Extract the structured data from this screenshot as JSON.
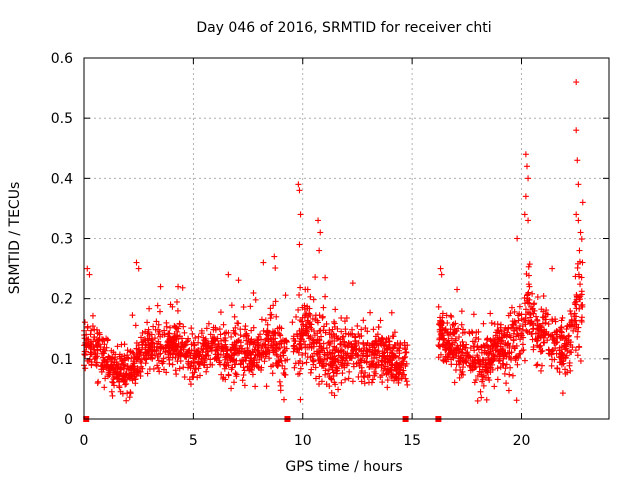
{
  "chart_data": {
    "type": "scatter",
    "title": "Day 046 of 2016, SRMTID for receiver chti",
    "xlabel": "GPS time / hours",
    "ylabel": "SRMTID / TECUs",
    "xlim": [
      0,
      24
    ],
    "ylim": [
      0,
      0.6
    ],
    "x_ticks": [
      0,
      5,
      10,
      15,
      20
    ],
    "x_tick_labels": [
      "0",
      "5",
      "10",
      "15",
      "20"
    ],
    "y_ticks": [
      0,
      0.1,
      0.2,
      0.3,
      0.4,
      0.5,
      0.6
    ],
    "y_tick_labels": [
      "0",
      "0.1",
      "0.2",
      "0.3",
      "0.4",
      "0.5",
      "0.6"
    ],
    "grid": true,
    "marker": "plus",
    "color": "#ff0000",
    "point_density_per_hour": 110,
    "gaps_hours": [
      [
        9.3,
        9.5
      ],
      [
        14.8,
        16.2
      ]
    ],
    "series": [
      {
        "name": "SRMTID",
        "trend": {
          "x": [
            0.0,
            0.5,
            1.0,
            1.5,
            2.0,
            2.5,
            3.0,
            3.5,
            4.0,
            4.5,
            5.0,
            5.5,
            6.0,
            6.5,
            7.0,
            7.5,
            8.0,
            8.5,
            9.0,
            9.3,
            9.5,
            10.0,
            10.5,
            11.0,
            11.5,
            12.0,
            12.5,
            13.0,
            13.5,
            14.0,
            14.5,
            14.8,
            16.2,
            16.5,
            17.0,
            17.5,
            18.0,
            18.5,
            19.0,
            19.5,
            20.0,
            20.3,
            20.6,
            21.0,
            21.5,
            22.0,
            22.3,
            22.6,
            22.8
          ],
          "y": [
            0.12,
            0.11,
            0.1,
            0.08,
            0.07,
            0.1,
            0.12,
            0.11,
            0.13,
            0.11,
            0.1,
            0.11,
            0.12,
            0.11,
            0.12,
            0.1,
            0.11,
            0.13,
            0.11,
            0.1,
            0.11,
            0.14,
            0.13,
            0.11,
            0.1,
            0.12,
            0.11,
            0.1,
            0.11,
            0.1,
            0.09,
            0.09,
            0.14,
            0.13,
            0.12,
            0.1,
            0.09,
            0.1,
            0.12,
            0.12,
            0.14,
            0.19,
            0.15,
            0.14,
            0.13,
            0.11,
            0.13,
            0.18,
            0.21
          ]
        },
        "spread": {
          "x": [
            0.0,
            2.0,
            5.0,
            9.0,
            10.0,
            11.0,
            14.0,
            16.5,
            19.0,
            20.3,
            21.0,
            22.0,
            22.6,
            22.8
          ],
          "y": [
            0.04,
            0.035,
            0.035,
            0.05,
            0.06,
            0.05,
            0.035,
            0.04,
            0.04,
            0.06,
            0.05,
            0.04,
            0.09,
            0.06
          ]
        },
        "peaks": [
          {
            "x": 0.15,
            "y": 0.25
          },
          {
            "x": 0.25,
            "y": 0.24
          },
          {
            "x": 2.4,
            "y": 0.26
          },
          {
            "x": 2.5,
            "y": 0.25
          },
          {
            "x": 3.5,
            "y": 0.22
          },
          {
            "x": 4.3,
            "y": 0.22
          },
          {
            "x": 6.6,
            "y": 0.24
          },
          {
            "x": 8.2,
            "y": 0.26
          },
          {
            "x": 8.7,
            "y": 0.27
          },
          {
            "x": 9.8,
            "y": 0.39
          },
          {
            "x": 9.85,
            "y": 0.38
          },
          {
            "x": 9.9,
            "y": 0.34
          },
          {
            "x": 9.85,
            "y": 0.29
          },
          {
            "x": 10.7,
            "y": 0.33
          },
          {
            "x": 10.8,
            "y": 0.31
          },
          {
            "x": 10.75,
            "y": 0.28
          },
          {
            "x": 16.3,
            "y": 0.25
          },
          {
            "x": 16.35,
            "y": 0.24
          },
          {
            "x": 19.8,
            "y": 0.3
          },
          {
            "x": 20.2,
            "y": 0.44
          },
          {
            "x": 20.25,
            "y": 0.42
          },
          {
            "x": 20.3,
            "y": 0.4
          },
          {
            "x": 20.2,
            "y": 0.37
          },
          {
            "x": 20.15,
            "y": 0.34
          },
          {
            "x": 20.3,
            "y": 0.33
          },
          {
            "x": 21.4,
            "y": 0.25
          },
          {
            "x": 22.5,
            "y": 0.56
          },
          {
            "x": 22.5,
            "y": 0.48
          },
          {
            "x": 22.55,
            "y": 0.43
          },
          {
            "x": 22.6,
            "y": 0.39
          },
          {
            "x": 22.8,
            "y": 0.36
          },
          {
            "x": 22.5,
            "y": 0.34
          },
          {
            "x": 22.6,
            "y": 0.33
          },
          {
            "x": 22.7,
            "y": 0.31
          },
          {
            "x": 22.65,
            "y": 0.28
          }
        ],
        "zero_markers": [
          {
            "x": 0.1,
            "y": 0.0
          },
          {
            "x": 9.3,
            "y": 0.0
          },
          {
            "x": 14.7,
            "y": 0.0
          },
          {
            "x": 16.2,
            "y": 0.0
          }
        ]
      }
    ]
  }
}
